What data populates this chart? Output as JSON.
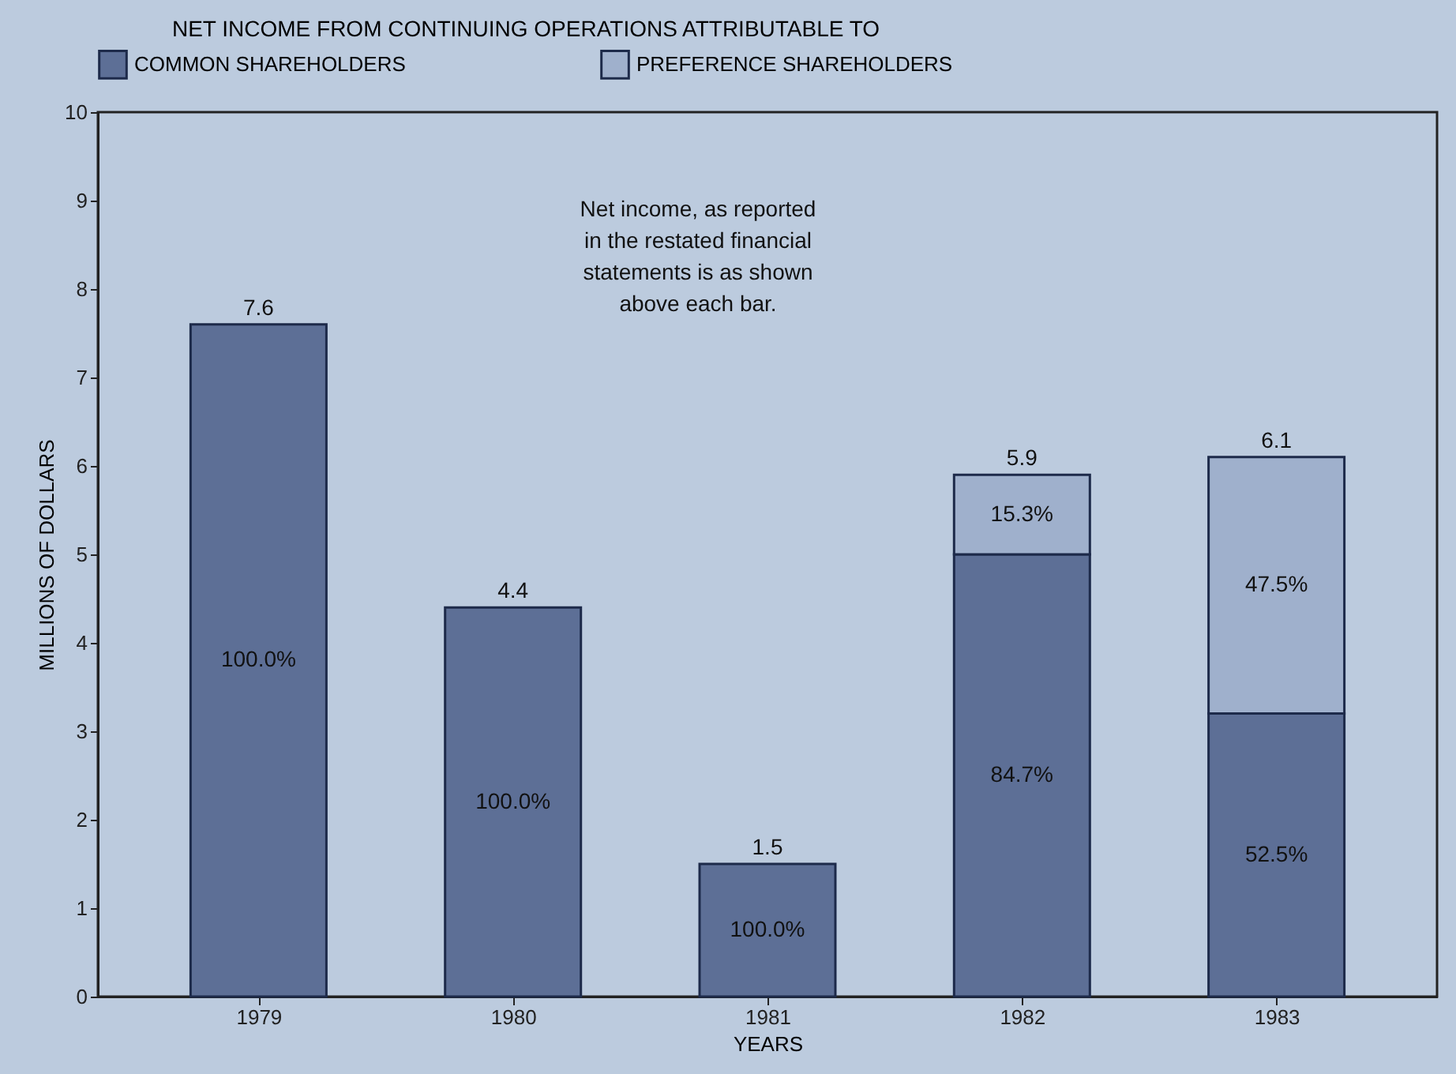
{
  "chart_data": {
    "type": "bar",
    "stacked": true,
    "legend_title": "NET INCOME FROM CONTINUING OPERATIONS ATTRIBUTABLE TO",
    "legend": "top",
    "xlabel": "YEARS",
    "ylabel": "MILLIONS OF DOLLARS",
    "categories": [
      "1979",
      "1980",
      "1981",
      "1982",
      "1983"
    ],
    "series": [
      {
        "name": "COMMON SHAREHOLDERS",
        "color": "#5d6f96",
        "values": [
          7.6,
          4.4,
          1.5,
          5.0,
          3.2
        ]
      },
      {
        "name": "PREFERENCE SHAREHOLDERS",
        "color": "#9fb0cc",
        "values": [
          null,
          null,
          null,
          0.9,
          2.9
        ]
      }
    ],
    "totals": [
      "7.6",
      "4.4",
      "1.5",
      "5.9",
      "6.1"
    ],
    "ylim": [
      0,
      10
    ],
    "yticks": [
      0,
      1,
      2,
      3,
      4,
      5,
      6,
      7,
      8,
      9,
      10
    ],
    "grid": false,
    "annotations": [
      "Net income, as reported\nin the restated financial\nstatements is as shown\nabove each bar.",
      "100.0%",
      "100.0%",
      "100.0%",
      "84.7%",
      "15.3%",
      "52.5%",
      "47.5%"
    ]
  }
}
